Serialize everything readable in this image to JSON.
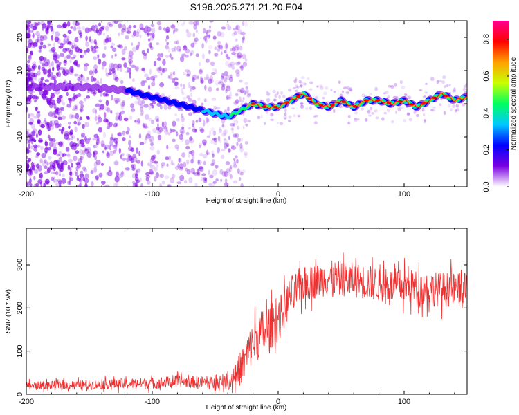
{
  "title": "S196.2025.271.21.20.E04",
  "chart_data": [
    {
      "type": "heatmap",
      "name": "spectrogram",
      "xlabel": "Height of straight line (km)",
      "ylabel": "Frequency (Hz)",
      "xlim": [
        -200,
        150
      ],
      "ylim": [
        -25,
        25
      ],
      "xticks": [
        -200,
        -100,
        0,
        100
      ],
      "xtick_labels": [
        "-200",
        "-100",
        "0",
        "100"
      ],
      "yticks": [
        20,
        10,
        0,
        -10,
        -20
      ],
      "ytick_labels": [
        "20",
        "10",
        "0",
        "-10",
        "-20"
      ],
      "colorbar": {
        "label": "Normalized spectral amplitude",
        "range": [
          0.0,
          0.9
        ],
        "ticks": [
          0.0,
          0.2,
          0.4,
          0.6,
          0.8
        ],
        "tick_labels": [
          "0.0",
          "0.2",
          "0.4",
          "0.6",
          "0.8"
        ],
        "colors": [
          "#ffffff",
          "#7a00e0",
          "#0000ff",
          "#00c8ff",
          "#00ff60",
          "#c8ff00",
          "#ffa000",
          "#ff0000",
          "#ff0090"
        ]
      },
      "ridge": {
        "x": [
          -200,
          -150,
          -120,
          -100,
          -80,
          -60,
          -50,
          -40,
          -30,
          -20,
          -10,
          0,
          10,
          20,
          30,
          40,
          50,
          60,
          70,
          80,
          90,
          100,
          110,
          120,
          130,
          140,
          150
        ],
        "freq": [
          5,
          5,
          4,
          2,
          0,
          -2,
          -3,
          -4,
          -2,
          0,
          -1,
          -1,
          1,
          3,
          0,
          -1,
          1,
          -1,
          1,
          1,
          0,
          1,
          -1,
          1,
          3,
          1,
          2
        ]
      },
      "noise_region": [
        -200,
        -35
      ],
      "noise_color": "#7a00e0"
    },
    {
      "type": "line",
      "name": "snr",
      "xlabel": "Height of straight line (km)",
      "ylabel": "SNR (10 * v/v)",
      "xlim": [
        -200,
        150
      ],
      "ylim": [
        0,
        385
      ],
      "xticks": [
        -200,
        -100,
        0,
        100
      ],
      "xtick_labels": [
        "-200",
        "-100",
        "0",
        "100"
      ],
      "yticks": [
        0,
        100,
        200,
        300
      ],
      "ytick_labels": [
        "0",
        "100",
        "200",
        "300"
      ],
      "line_color": "#ee3030",
      "baseline": {
        "x": [
          -200,
          -150,
          -100,
          -75,
          -50,
          -38,
          -30,
          -20,
          -10,
          0,
          10,
          20,
          40,
          60,
          80,
          100,
          120,
          150
        ],
        "y": [
          20,
          22,
          26,
          30,
          25,
          28,
          60,
          120,
          150,
          170,
          230,
          255,
          270,
          265,
          255,
          250,
          245,
          240
        ]
      },
      "jitter": {
        "x": [
          -200,
          -40,
          -30,
          -10,
          0,
          20,
          150
        ],
        "y": [
          20,
          35,
          90,
          130,
          110,
          90,
          90
        ]
      }
    }
  ]
}
